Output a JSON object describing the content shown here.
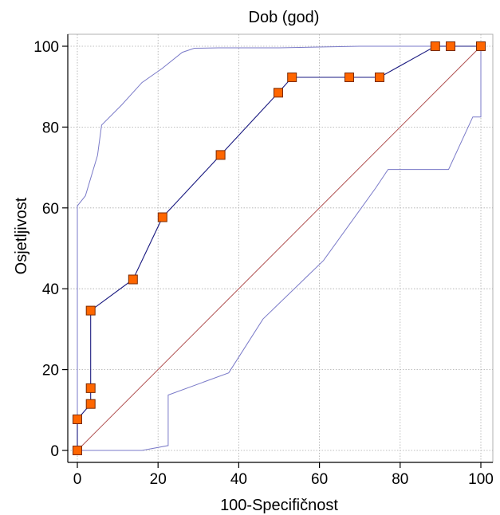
{
  "chart_data": {
    "type": "line",
    "title": "Dob (god)",
    "xlabel": "100-Specifičnost",
    "ylabel": "Osjetljivost",
    "xlim": [
      0,
      100
    ],
    "ylim": [
      0,
      100
    ],
    "xticks": [
      0,
      20,
      40,
      60,
      80,
      100
    ],
    "yticks": [
      0,
      20,
      40,
      60,
      80,
      100
    ],
    "grid": true,
    "colors": {
      "roc": "#1a1a80",
      "ci": "#7a7ac8",
      "diagonal": "#b05050",
      "marker_fill": "#ff6600",
      "marker_stroke": "#7a2a00"
    },
    "series": [
      {
        "role": "roc",
        "x": [
          0,
          0,
          0,
          3.3,
          3.3,
          3.3,
          3.3,
          13.8,
          21.1,
          35.5,
          49.8,
          53.2,
          67.4,
          74.9,
          88.7,
          92.5,
          100,
          100
        ],
        "y": [
          0,
          7.7,
          7.7,
          11.5,
          15.4,
          15.4,
          34.6,
          42.3,
          57.7,
          73.1,
          88.5,
          92.3,
          92.3,
          92.3,
          100,
          100,
          100,
          100
        ]
      },
      {
        "role": "markers",
        "x": [
          0,
          0,
          3.3,
          3.3,
          3.3,
          13.8,
          21.1,
          35.5,
          49.8,
          53.2,
          67.4,
          74.9,
          88.7,
          92.5,
          100
        ],
        "y": [
          0,
          7.7,
          11.5,
          15.4,
          34.6,
          42.3,
          57.7,
          73.1,
          88.5,
          92.3,
          92.3,
          92.3,
          100,
          100,
          100
        ]
      },
      {
        "role": "ci_upper",
        "x": [
          0,
          0,
          2,
          5,
          6,
          11,
          16,
          21,
          26,
          29,
          35,
          50,
          70,
          100
        ],
        "y": [
          0,
          60.5,
          63,
          73,
          80.5,
          85.5,
          91,
          94.5,
          98.5,
          99.5,
          99.6,
          99.6,
          100,
          100
        ]
      },
      {
        "role": "ci_lower",
        "x": [
          0,
          16,
          22.5,
          22.5,
          37.5,
          46,
          61,
          74,
          77,
          92,
          98,
          100,
          100
        ],
        "y": [
          0,
          0,
          1.2,
          13.7,
          19.2,
          32.5,
          47,
          65,
          69.5,
          69.5,
          82.5,
          82.5,
          100
        ]
      },
      {
        "role": "diagonal",
        "x": [
          0,
          100
        ],
        "y": [
          0,
          100
        ]
      }
    ]
  }
}
